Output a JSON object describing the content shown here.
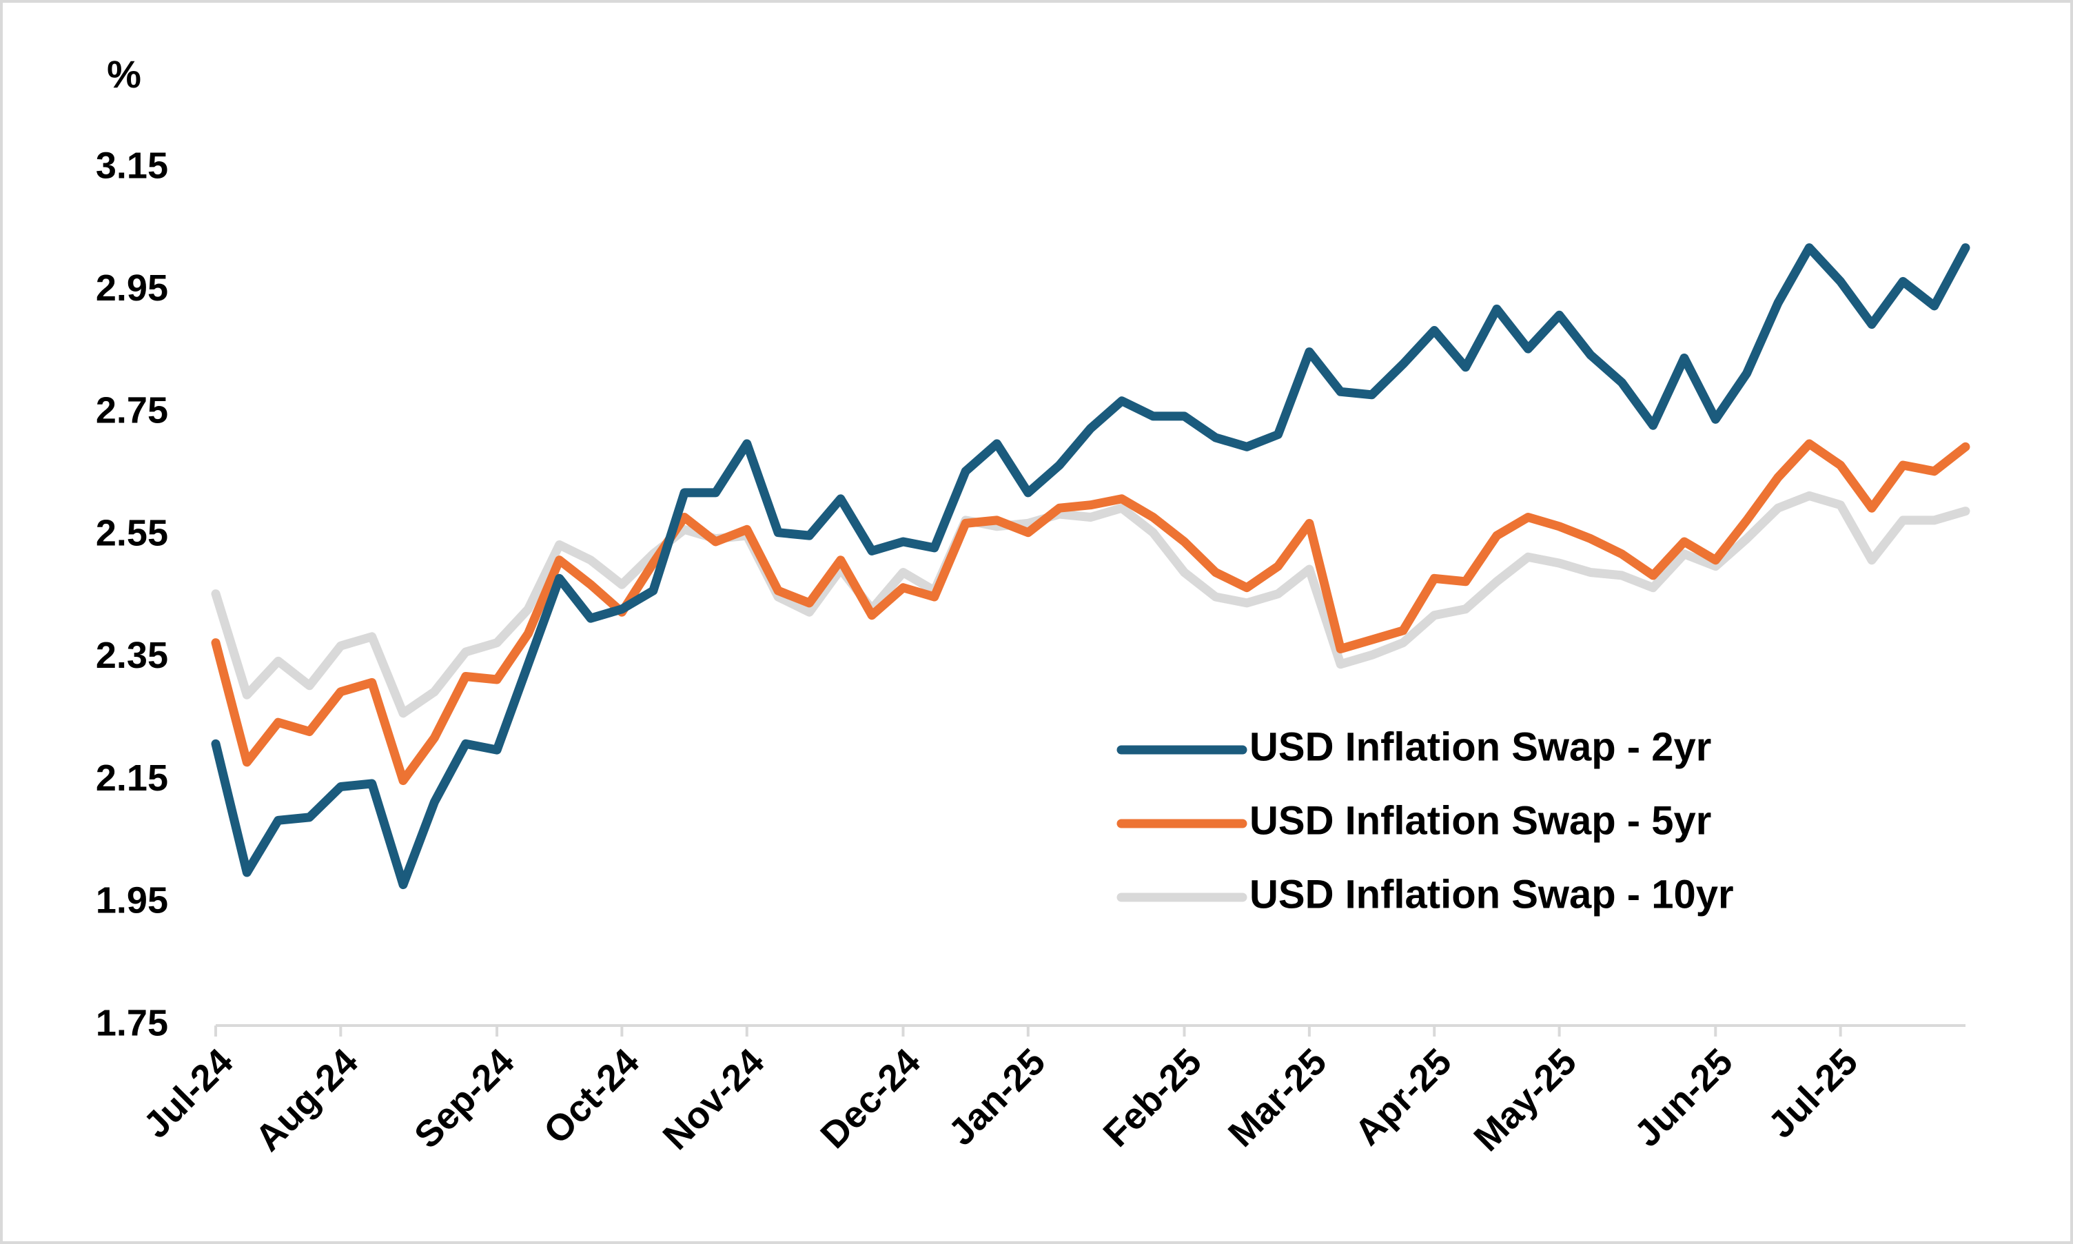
{
  "chart_data": {
    "type": "line",
    "y_label": "%",
    "categories": [
      "Jul-24",
      null,
      null,
      null,
      "Aug-24",
      null,
      null,
      null,
      null,
      "Sep-24",
      null,
      null,
      null,
      "Oct-24",
      null,
      null,
      null,
      "Nov-24",
      null,
      null,
      null,
      null,
      "Dec-24",
      null,
      null,
      null,
      "Jan-25",
      null,
      null,
      null,
      null,
      "Feb-25",
      null,
      null,
      null,
      "Mar-25",
      null,
      null,
      null,
      "Apr-25",
      null,
      null,
      null,
      "May-25",
      null,
      null,
      null,
      null,
      "Jun-25",
      null,
      null,
      null,
      "Jul-25",
      null,
      null,
      null,
      null
    ],
    "series": [
      {
        "name": "USD Inflation Swap - 2yr",
        "color": "#1b5b7d",
        "values": [
          2.21,
          2.0,
          2.085,
          2.09,
          2.14,
          2.145,
          1.98,
          2.115,
          2.21,
          2.2,
          2.34,
          2.48,
          2.415,
          2.43,
          2.46,
          2.62,
          2.62,
          2.7,
          2.555,
          2.55,
          2.61,
          2.525,
          2.54,
          2.53,
          2.655,
          2.7,
          2.62,
          2.665,
          2.725,
          2.77,
          2.745,
          2.745,
          2.71,
          2.695,
          2.715,
          2.85,
          2.785,
          2.78,
          2.83,
          2.885,
          2.825,
          2.92,
          2.855,
          2.91,
          2.845,
          2.8,
          2.73,
          2.84,
          2.74,
          2.815,
          2.93,
          3.02,
          2.965,
          2.895,
          2.965,
          2.925,
          3.02
        ]
      },
      {
        "name": "USD Inflation Swap - 5yr",
        "color": "#ed7333",
        "values": [
          2.375,
          2.18,
          2.245,
          2.23,
          2.295,
          2.31,
          2.15,
          2.22,
          2.32,
          2.315,
          2.39,
          2.51,
          2.47,
          2.425,
          2.505,
          2.58,
          2.54,
          2.56,
          2.46,
          2.44,
          2.51,
          2.42,
          2.465,
          2.45,
          2.57,
          2.575,
          2.555,
          2.595,
          2.6,
          2.61,
          2.58,
          2.54,
          2.49,
          2.465,
          2.5,
          2.57,
          2.365,
          2.38,
          2.395,
          2.48,
          2.475,
          2.55,
          2.58,
          2.565,
          2.545,
          2.52,
          2.485,
          2.54,
          2.51,
          2.575,
          2.645,
          2.7,
          2.665,
          2.595,
          2.665,
          2.655,
          2.695
        ]
      },
      {
        "name": "USD Inflation Swap - 10yr",
        "color": "#d9d9d9",
        "values": [
          2.455,
          2.29,
          2.345,
          2.305,
          2.37,
          2.385,
          2.26,
          2.295,
          2.36,
          2.375,
          2.43,
          2.535,
          2.51,
          2.47,
          2.52,
          2.56,
          2.545,
          2.55,
          2.45,
          2.425,
          2.495,
          2.43,
          2.49,
          2.46,
          2.575,
          2.565,
          2.57,
          2.585,
          2.58,
          2.595,
          2.555,
          2.49,
          2.45,
          2.44,
          2.455,
          2.495,
          2.34,
          2.355,
          2.375,
          2.42,
          2.43,
          2.475,
          2.515,
          2.505,
          2.49,
          2.485,
          2.465,
          2.52,
          2.5,
          2.545,
          2.595,
          2.615,
          2.6,
          2.51,
          2.575,
          2.575,
          2.59
        ]
      }
    ],
    "ylim": [
      1.75,
      3.15
    ],
    "yticks": [
      1.75,
      1.95,
      2.15,
      2.35,
      2.55,
      2.75,
      2.95,
      3.15
    ],
    "grid": false,
    "legend": "lower right"
  }
}
